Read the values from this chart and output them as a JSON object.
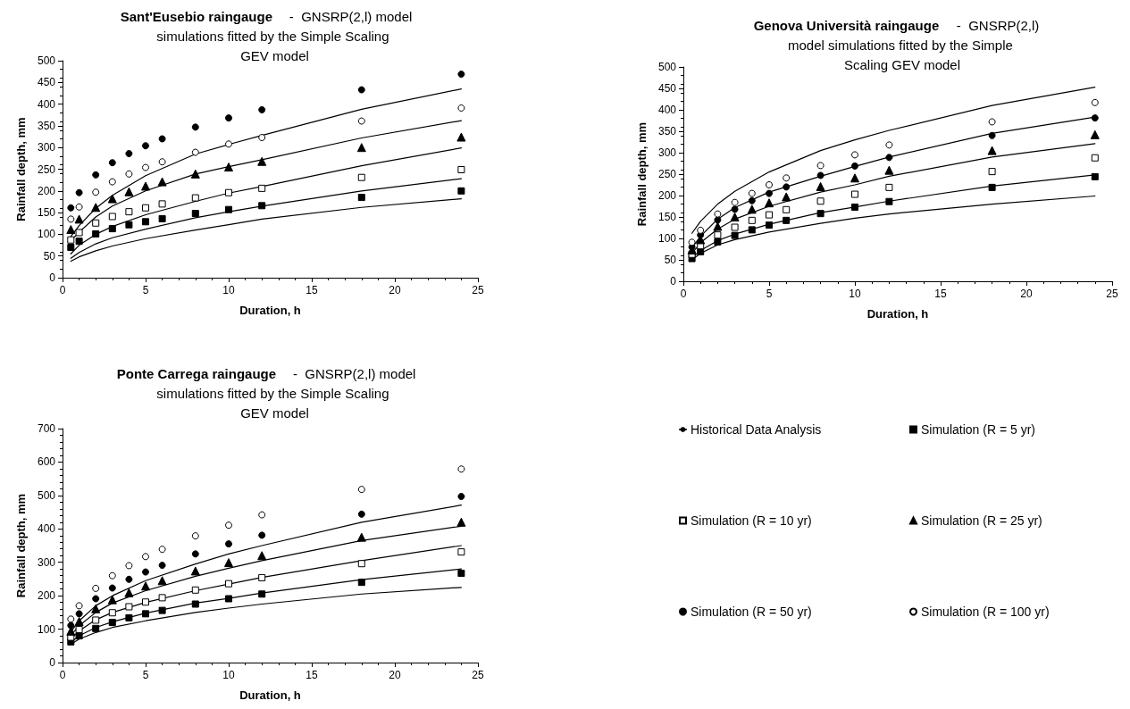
{
  "chart_data": [
    {
      "type": "scatter",
      "title": "Sant'Eusebio raingauge",
      "subtitle": "-  GNSRP(2,l) model simulations fitted by the Simple Scaling GEV model",
      "xlabel": "Duration, h",
      "ylabel": "Rainfall depth, mm",
      "xlim": [
        0,
        25
      ],
      "xticks": [
        0,
        5,
        10,
        15,
        20,
        25
      ],
      "ylim": [
        0,
        500
      ],
      "yticks": [
        0,
        50,
        100,
        150,
        200,
        250,
        300,
        350,
        400,
        450,
        500
      ],
      "grid": false,
      "legend": false,
      "x": [
        0.5,
        1,
        2,
        3,
        4,
        5,
        6,
        8,
        10,
        12,
        18,
        24
      ],
      "series": [
        {
          "type": "line",
          "color": "#000000",
          "marker": "none",
          "line_style": "solid",
          "x": [
            0.5,
            1,
            2,
            3,
            5,
            8,
            10,
            12,
            18,
            24
          ],
          "values": [
            38,
            48,
            62,
            73,
            90,
            110,
            122,
            135,
            162,
            182
          ]
        },
        {
          "type": "line",
          "color": "#000000",
          "marker": "none",
          "line_style": "solid",
          "x": [
            0.5,
            1,
            2,
            3,
            5,
            8,
            10,
            12,
            18,
            24
          ],
          "values": [
            45,
            58,
            78,
            92,
            112,
            138,
            152,
            165,
            200,
            228
          ]
        },
        {
          "type": "line",
          "color": "#000000",
          "marker": "none",
          "line_style": "solid",
          "x": [
            0.5,
            1,
            2,
            3,
            5,
            8,
            10,
            12,
            18,
            24
          ],
          "values": [
            55,
            75,
            100,
            118,
            145,
            176,
            195,
            210,
            258,
            299
          ]
        },
        {
          "type": "line",
          "color": "#000000",
          "marker": "none",
          "line_style": "solid",
          "x": [
            0.5,
            1,
            2,
            3,
            5,
            8,
            10,
            12,
            18,
            24
          ],
          "values": [
            85,
            105,
            140,
            165,
            200,
            239,
            256,
            272,
            322,
            362
          ]
        },
        {
          "type": "line",
          "color": "#000000",
          "marker": "none",
          "line_style": "solid",
          "x": [
            0.5,
            1,
            2,
            3,
            5,
            8,
            10,
            12,
            18,
            24
          ],
          "values": [
            95,
            120,
            160,
            190,
            235,
            285,
            307,
            328,
            388,
            435
          ]
        },
        {
          "color": "#000000",
          "marker": "square",
          "values": [
            70,
            84,
            101,
            113,
            122,
            129,
            136,
            148,
            157,
            166,
            185,
            200
          ]
        },
        {
          "color": "#ffffff",
          "marker": "square",
          "values": [
            87,
            104,
            126,
            141,
            152,
            161,
            170,
            184,
            196,
            206,
            231,
            249
          ]
        },
        {
          "color": "#000000",
          "marker": "triangle",
          "values": [
            111,
            135,
            162,
            182,
            198,
            211,
            221,
            239,
            255,
            268,
            300,
            324
          ]
        },
        {
          "color": "#000000",
          "marker": "circle",
          "values": [
            161,
            196,
            237,
            265,
            286,
            304,
            320,
            347,
            368,
            387,
            433,
            469
          ]
        },
        {
          "color": "#ffffff",
          "marker": "circle",
          "values": [
            135,
            163,
            197,
            221,
            239,
            254,
            267,
            289,
            308,
            323,
            361,
            391
          ]
        }
      ]
    },
    {
      "type": "scatter",
      "title": "Genova Università raingauge",
      "subtitle": "-  GNSRP(2,l) model simulations fitted by the Simple Scaling GEV model",
      "xlabel": "Duration, h",
      "ylabel": "Rainfall depth, mm",
      "xlim": [
        0,
        25
      ],
      "xticks": [
        0,
        5,
        10,
        15,
        20,
        25
      ],
      "ylim": [
        0,
        500
      ],
      "yticks": [
        0,
        50,
        100,
        150,
        200,
        250,
        300,
        350,
        400,
        450,
        500
      ],
      "grid": false,
      "legend": false,
      "x": [
        0.5,
        1,
        2,
        3,
        4,
        5,
        6,
        8,
        10,
        12,
        18,
        24
      ],
      "series": [
        {
          "type": "line",
          "color": "#000000",
          "marker": "none",
          "line_style": "solid",
          "x": [
            0.5,
            1,
            2,
            3,
            5,
            8,
            10,
            12,
            18,
            24
          ],
          "values": [
            50,
            65,
            85,
            97,
            115,
            135,
            147,
            157,
            180,
            199
          ]
        },
        {
          "type": "line",
          "color": "#000000",
          "marker": "none",
          "line_style": "solid",
          "x": [
            0.5,
            1,
            2,
            3,
            5,
            8,
            10,
            12,
            18,
            24
          ],
          "values": [
            55,
            72,
            95,
            110,
            133,
            160,
            173,
            187,
            222,
            248
          ]
        },
        {
          "type": "line",
          "color": "#000000",
          "marker": "none",
          "line_style": "solid",
          "x": [
            0.5,
            1,
            2,
            3,
            5,
            8,
            10,
            12,
            18,
            24
          ],
          "values": [
            65,
            90,
            122,
            145,
            175,
            208,
            225,
            245,
            290,
            321
          ]
        },
        {
          "type": "line",
          "color": "#000000",
          "marker": "none",
          "line_style": "solid",
          "x": [
            0.5,
            1,
            2,
            3,
            5,
            8,
            10,
            12,
            18,
            24
          ],
          "values": [
            78,
            105,
            145,
            172,
            208,
            245,
            268,
            290,
            345,
            383
          ]
        },
        {
          "type": "line",
          "color": "#000000",
          "marker": "none",
          "line_style": "solid",
          "x": [
            0.5,
            1,
            2,
            3,
            5,
            8,
            10,
            12,
            18,
            24
          ],
          "values": [
            112,
            140,
            180,
            210,
            255,
            305,
            330,
            352,
            410,
            453
          ]
        },
        {
          "color": "#000000",
          "marker": "square",
          "values": [
            53,
            69,
            92,
            107,
            120,
            131,
            142,
            158,
            173,
            186,
            219,
            244
          ]
        },
        {
          "color": "#ffffff",
          "marker": "square",
          "values": [
            63,
            83,
            108,
            126,
            142,
            155,
            167,
            187,
            203,
            219,
            256,
            288
          ]
        },
        {
          "color": "#000000",
          "marker": "triangle",
          "values": [
            73,
            97,
            128,
            150,
            168,
            183,
            197,
            221,
            241,
            259,
            305,
            342
          ]
        },
        {
          "color": "#000000",
          "marker": "circle",
          "values": [
            80,
            108,
            143,
            168,
            188,
            205,
            220,
            247,
            269,
            289,
            340,
            381
          ]
        },
        {
          "color": "#ffffff",
          "marker": "circle",
          "values": [
            91,
            119,
            157,
            184,
            205,
            225,
            241,
            270,
            295,
            318,
            372,
            417
          ]
        }
      ]
    },
    {
      "type": "scatter",
      "title": "Ponte Carrega raingauge",
      "subtitle": "-  GNSRP(2,l) model simulations fitted by the Simple Scaling GEV model",
      "xlabel": "Duration, h",
      "ylabel": "Rainfall depth, mm",
      "xlim": [
        0,
        25
      ],
      "xticks": [
        0,
        5,
        10,
        15,
        20,
        25
      ],
      "ylim": [
        0,
        700
      ],
      "yticks": [
        0,
        100,
        200,
        300,
        400,
        500,
        600,
        700
      ],
      "grid": false,
      "legend": "right",
      "x": [
        0.5,
        1,
        2,
        3,
        4,
        5,
        6,
        8,
        10,
        12,
        18,
        24
      ],
      "series": [
        {
          "type": "line",
          "name": "Historical Data Analysis",
          "color": "#000000",
          "marker": "none",
          "line_style": "solid",
          "x": [
            0.5,
            1,
            2,
            3,
            5,
            8,
            10,
            12,
            18,
            24
          ],
          "values": [
            55,
            70,
            90,
            105,
            125,
            150,
            163,
            175,
            205,
            225
          ]
        },
        {
          "type": "line",
          "color": "#000000",
          "marker": "none",
          "line_style": "solid",
          "x": [
            0.5,
            1,
            2,
            3,
            5,
            8,
            10,
            12,
            18,
            24
          ],
          "values": [
            60,
            80,
            105,
            122,
            148,
            178,
            192,
            208,
            248,
            280
          ]
        },
        {
          "type": "line",
          "color": "#000000",
          "marker": "none",
          "line_style": "solid",
          "x": [
            0.5,
            1,
            2,
            3,
            5,
            8,
            10,
            12,
            18,
            24
          ],
          "values": [
            70,
            95,
            128,
            150,
            180,
            215,
            235,
            255,
            305,
            350
          ]
        },
        {
          "type": "line",
          "color": "#000000",
          "marker": "none",
          "line_style": "solid",
          "x": [
            0.5,
            1,
            2,
            3,
            5,
            8,
            10,
            12,
            18,
            24
          ],
          "values": [
            82,
            110,
            150,
            178,
            215,
            258,
            282,
            305,
            365,
            408
          ]
        },
        {
          "type": "line",
          "color": "#000000",
          "marker": "none",
          "line_style": "solid",
          "x": [
            0.5,
            1,
            2,
            3,
            5,
            8,
            10,
            12,
            18,
            24
          ],
          "values": [
            92,
            125,
            170,
            200,
            245,
            295,
            325,
            350,
            420,
            471
          ]
        },
        {
          "name": "Simulation (R = 5 yr)",
          "color": "#000000",
          "marker": "square",
          "values": [
            62,
            80,
            102,
            120,
            134,
            146,
            156,
            175,
            191,
            205,
            240,
            267
          ]
        },
        {
          "name": "Simulation (R = 10 yr)",
          "color": "#ffffff",
          "marker": "square",
          "values": [
            76,
            99,
            127,
            149,
            167,
            181,
            194,
            217,
            236,
            254,
            296,
            331
          ]
        },
        {
          "name": "Simulation (R = 25 yr)",
          "color": "#000000",
          "marker": "triangle",
          "values": [
            94,
            123,
            161,
            188,
            209,
            229,
            245,
            274,
            299,
            320,
            375,
            420
          ]
        },
        {
          "name": "Simulation (R = 50 yr)",
          "color": "#000000",
          "marker": "circle",
          "values": [
            111,
            146,
            191,
            223,
            249,
            271,
            291,
            325,
            355,
            381,
            444,
            497
          ]
        },
        {
          "name": "Simulation (R = 100 yr)",
          "color": "#ffffff",
          "marker": "circle",
          "values": [
            130,
            170,
            222,
            260,
            290,
            317,
            339,
            379,
            411,
            442,
            518,
            579
          ]
        }
      ]
    }
  ]
}
